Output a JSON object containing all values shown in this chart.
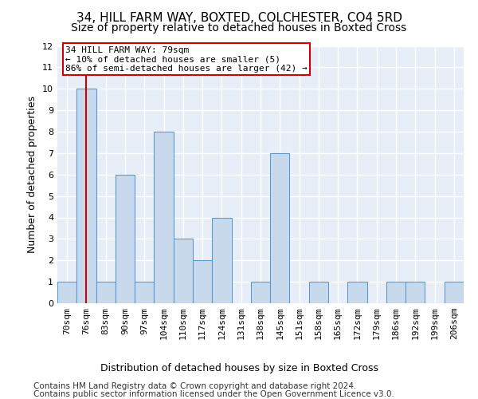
{
  "title": "34, HILL FARM WAY, BOXTED, COLCHESTER, CO4 5RD",
  "subtitle": "Size of property relative to detached houses in Boxted Cross",
  "xlabel_bottom": "Distribution of detached houses by size in Boxted Cross",
  "ylabel": "Number of detached properties",
  "categories": [
    "70sqm",
    "76sqm",
    "83sqm",
    "90sqm",
    "97sqm",
    "104sqm",
    "110sqm",
    "117sqm",
    "124sqm",
    "131sqm",
    "138sqm",
    "145sqm",
    "151sqm",
    "158sqm",
    "165sqm",
    "172sqm",
    "179sqm",
    "186sqm",
    "192sqm",
    "199sqm",
    "206sqm"
  ],
  "values": [
    1,
    10,
    1,
    6,
    1,
    8,
    3,
    2,
    4,
    0,
    1,
    7,
    0,
    1,
    0,
    1,
    0,
    1,
    1,
    0,
    1
  ],
  "bar_color": "#c9d9ec",
  "bar_edge_color": "#5b9bd5",
  "reference_line_x": 1,
  "reference_line_color": "#cc0000",
  "ylim": [
    0,
    12
  ],
  "yticks": [
    0,
    1,
    2,
    3,
    4,
    5,
    6,
    7,
    8,
    9,
    10,
    11,
    12
  ],
  "annotation_title": "34 HILL FARM WAY: 79sqm",
  "annotation_line1": "← 10% of detached houses are smaller (5)",
  "annotation_line2": "86% of semi-detached houses are larger (42) →",
  "annotation_box_color": "#cc0000",
  "footer_line1": "Contains HM Land Registry data © Crown copyright and database right 2024.",
  "footer_line2": "Contains public sector information licensed under the Open Government Licence v3.0.",
  "bg_color": "#e8eef7",
  "grid_color": "#ffffff",
  "title_fontsize": 11,
  "subtitle_fontsize": 10,
  "axis_label_fontsize": 9,
  "tick_fontsize": 8,
  "footer_fontsize": 7.5
}
